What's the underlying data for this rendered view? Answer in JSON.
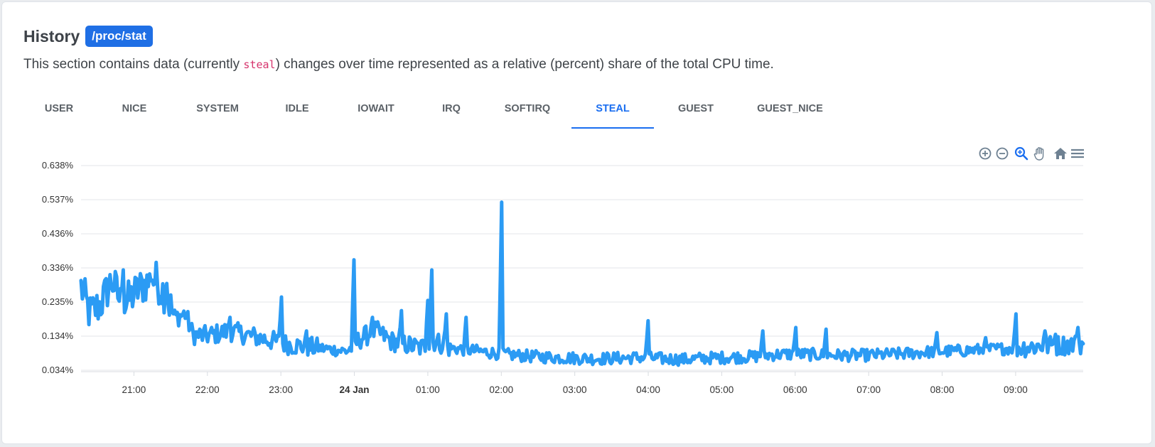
{
  "header": {
    "title": "History",
    "badge": "/proc/stat",
    "desc_pre": "This section contains data (currently ",
    "desc_code": "steal",
    "desc_post": ") changes over time represented as a relative (percent) share of the total CPU time."
  },
  "tabs": [
    {
      "label": "USER",
      "active": false
    },
    {
      "label": "NICE",
      "active": false
    },
    {
      "label": "SYSTEM",
      "active": false
    },
    {
      "label": "IDLE",
      "active": false
    },
    {
      "label": "IOWAIT",
      "active": false
    },
    {
      "label": "IRQ",
      "active": false
    },
    {
      "label": "SOFTIRQ",
      "active": false
    },
    {
      "label": "STEAL",
      "active": true
    },
    {
      "label": "GUEST",
      "active": false
    },
    {
      "label": "GUEST_NICE",
      "active": false
    }
  ],
  "toolbar": [
    "zoom-in-icon",
    "zoom-out-icon",
    "selection-zoom-icon",
    "pan-hand-icon",
    "home-reset-icon",
    "menu-icon"
  ],
  "colors": {
    "accent": "#1a6ef0",
    "series": "#2b9bf4",
    "badge": "#1f6fe5",
    "grid": "#e3e6ea"
  },
  "chart_data": {
    "type": "line",
    "title": "",
    "xlabel": "",
    "ylabel": "",
    "series": [
      {
        "values_note": "steal percent over time"
      }
    ],
    "y_ticks": [
      "0.638%",
      "0.537%",
      "0.436%",
      "0.336%",
      "0.235%",
      "0.134%",
      "0.034%"
    ],
    "ylim": [
      0.034,
      0.638
    ],
    "x_ticks": [
      "21:00",
      "22:00",
      "23:00",
      "24 Jan",
      "01:00",
      "02:00",
      "03:00",
      "04:00",
      "05:00",
      "06:00",
      "07:00",
      "08:00",
      "09:00"
    ],
    "x_tick_bold": "24 Jan",
    "x_range_hours": [
      20.28,
      33.92
    ],
    "anchors": [
      [
        20.28,
        0.28
      ],
      [
        20.4,
        0.2
      ],
      [
        20.55,
        0.23
      ],
      [
        20.7,
        0.3
      ],
      [
        20.85,
        0.22
      ],
      [
        21.0,
        0.26
      ],
      [
        21.15,
        0.29
      ],
      [
        21.3,
        0.3
      ],
      [
        21.45,
        0.25
      ],
      [
        21.55,
        0.19
      ],
      [
        21.7,
        0.2
      ],
      [
        21.8,
        0.14
      ],
      [
        21.95,
        0.135
      ],
      [
        22.1,
        0.14
      ],
      [
        22.3,
        0.15
      ],
      [
        22.5,
        0.14
      ],
      [
        22.7,
        0.13
      ],
      [
        22.9,
        0.12
      ],
      [
        23.1,
        0.11
      ],
      [
        23.3,
        0.105
      ],
      [
        23.5,
        0.1
      ],
      [
        23.7,
        0.095
      ],
      [
        23.9,
        0.09
      ],
      [
        24.1,
        0.13
      ],
      [
        24.3,
        0.15
      ],
      [
        24.5,
        0.12
      ],
      [
        24.7,
        0.11
      ],
      [
        24.9,
        0.1
      ],
      [
        25.1,
        0.12
      ],
      [
        25.3,
        0.1
      ],
      [
        25.5,
        0.095
      ],
      [
        25.7,
        0.09
      ],
      [
        25.9,
        0.085
      ],
      [
        26.1,
        0.08
      ],
      [
        26.4,
        0.075
      ],
      [
        26.7,
        0.072
      ],
      [
        27.0,
        0.07
      ],
      [
        27.3,
        0.068
      ],
      [
        27.6,
        0.07
      ],
      [
        27.9,
        0.072
      ],
      [
        28.2,
        0.068
      ],
      [
        28.5,
        0.066
      ],
      [
        28.8,
        0.07
      ],
      [
        29.1,
        0.072
      ],
      [
        29.4,
        0.074
      ],
      [
        29.7,
        0.08
      ],
      [
        30.0,
        0.082
      ],
      [
        30.3,
        0.08
      ],
      [
        30.6,
        0.078
      ],
      [
        30.9,
        0.078
      ],
      [
        31.2,
        0.08
      ],
      [
        31.5,
        0.083
      ],
      [
        31.8,
        0.088
      ],
      [
        32.1,
        0.09
      ],
      [
        32.4,
        0.093
      ],
      [
        32.7,
        0.096
      ],
      [
        33.0,
        0.1
      ],
      [
        33.3,
        0.105
      ],
      [
        33.6,
        0.108
      ],
      [
        33.92,
        0.112
      ]
    ],
    "spikes": [
      [
        20.85,
        0.33
      ],
      [
        21.25,
        0.3
      ],
      [
        21.45,
        0.29
      ],
      [
        22.3,
        0.19
      ],
      [
        23.0,
        0.25
      ],
      [
        23.35,
        0.15
      ],
      [
        24.0,
        0.36
      ],
      [
        24.25,
        0.19
      ],
      [
        24.65,
        0.21
      ],
      [
        25.0,
        0.24
      ],
      [
        25.05,
        0.33
      ],
      [
        25.25,
        0.2
      ],
      [
        25.52,
        0.19
      ],
      [
        26.0,
        0.53
      ],
      [
        28.0,
        0.18
      ],
      [
        29.55,
        0.15
      ],
      [
        30.0,
        0.16
      ],
      [
        30.42,
        0.155
      ],
      [
        31.92,
        0.145
      ],
      [
        32.6,
        0.13
      ],
      [
        33.0,
        0.2
      ],
      [
        33.4,
        0.15
      ],
      [
        33.55,
        0.14
      ],
      [
        33.85,
        0.16
      ]
    ]
  }
}
